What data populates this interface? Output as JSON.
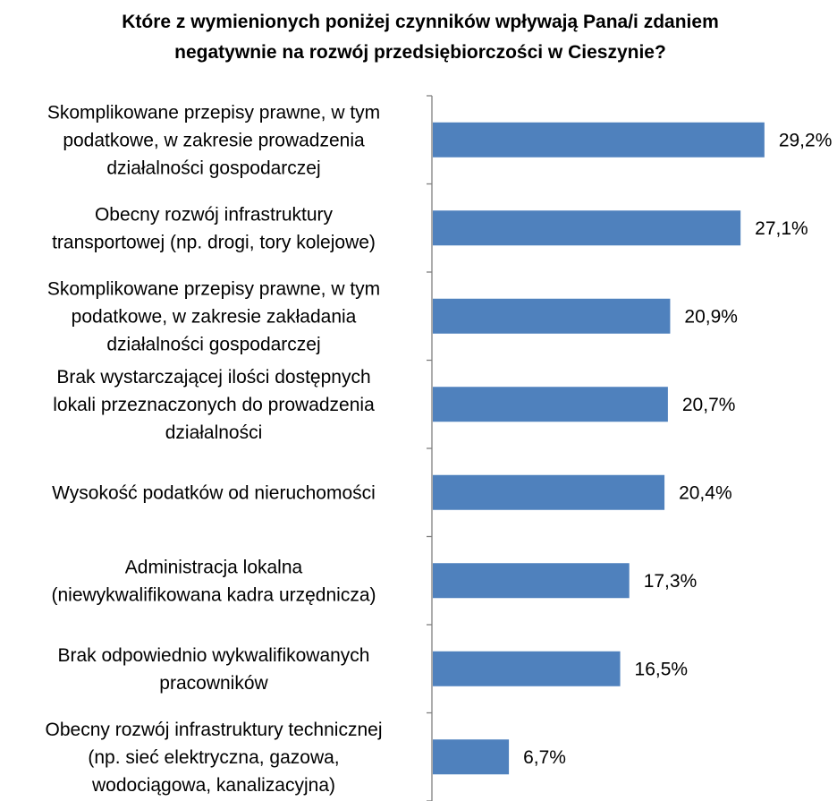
{
  "chart_data": {
    "type": "bar",
    "orientation": "horizontal",
    "title": "Które z wymienionych poniżej czynników wpływają Pana/i zdaniem negatywnie na rozwój przedsiębiorczości w Cieszynie?",
    "title_lines": [
      "Które z wymienionych poniżej czynników wpływają Pana/i zdaniem",
      "negatywnie na rozwój przedsiębiorczości w Cieszynie?"
    ],
    "categories": [
      "Skomplikowane przepisy prawne, w tym podatkowe, w zakresie prowadzenia działalności gospodarczej",
      "Obecny rozwój infrastruktury transportowej (np. drogi, tory kolejowe)",
      "Skomplikowane przepisy prawne, w tym podatkowe, w zakresie zakładania działalności gospodarczej",
      "Brak wystarczającej ilości dostępnych lokali przeznaczonych do prowadzenia działalności",
      "Wysokość podatków od nieruchomości",
      "Administracja lokalna (niewykwalifikowana kadra urzędnicza)",
      "Brak odpowiednio wykwalifikowanych pracowników",
      "Obecny rozwój infrastruktury technicznej (np. sieć elektryczna, gazowa, wodociągowa, kanalizacyjna)"
    ],
    "category_lines": [
      [
        "Skomplikowane przepisy prawne, w tym",
        "podatkowe, w zakresie prowadzenia",
        "działalności gospodarczej"
      ],
      [
        "Obecny rozwój infrastruktury",
        "transportowej (np. drogi, tory kolejowe)"
      ],
      [
        "Skomplikowane przepisy prawne, w tym",
        "podatkowe, w zakresie zakładania",
        "działalności gospodarczej"
      ],
      [
        "Brak wystarczającej ilości dostępnych",
        "lokali przeznaczonych do prowadzenia",
        "działalności"
      ],
      [
        "Wysokość podatków od nieruchomości"
      ],
      [
        "Administracja lokalna",
        "(niewykwalifikowana kadra urzędnicza)"
      ],
      [
        "Brak odpowiednio wykwalifikowanych",
        "pracowników"
      ],
      [
        "Obecny rozwój infrastruktury technicznej",
        "(np. sieć elektryczna, gazowa,",
        "wodociągowa, kanalizacyjna)"
      ]
    ],
    "values": [
      29.2,
      27.1,
      20.9,
      20.7,
      20.4,
      17.3,
      16.5,
      6.7
    ],
    "value_labels": [
      "29,2%",
      "27,1%",
      "20,9%",
      "20,7%",
      "20,4%",
      "17,3%",
      "16,5%",
      "6,7%"
    ],
    "bar_color": "#4f81bd",
    "xlim": [
      0,
      35
    ],
    "grid": false,
    "legend": "none"
  }
}
